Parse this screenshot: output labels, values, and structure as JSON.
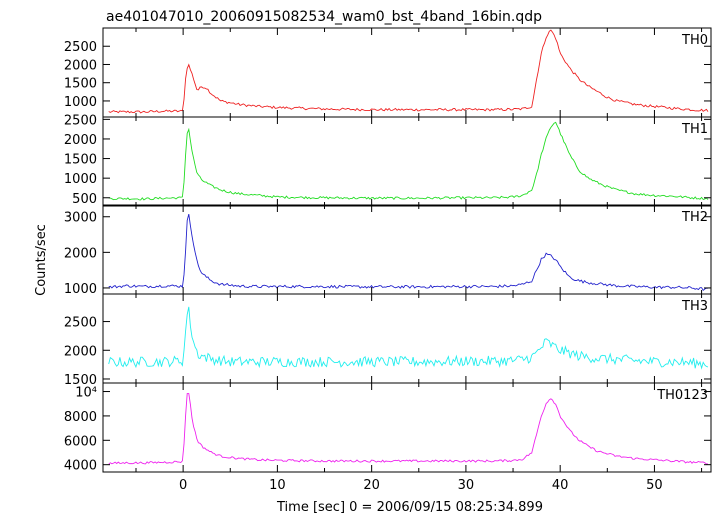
{
  "title": "ae401047010_20060915082534_wam0_bst_4band_16bin.qdp",
  "ylabel": "Counts/sec",
  "xlabel": "Time [sec] 0 = 2006/09/15 08:25:34.899",
  "chart_data": [
    {
      "type": "line",
      "name": "TH0",
      "color": "#ee2222",
      "xlim": [
        -8.5,
        56
      ],
      "ylim": [
        560,
        3000
      ],
      "yticks": [
        1000,
        1500,
        2000,
        2500
      ],
      "ytick_labels": [
        "1000",
        "1500",
        "2000",
        "2500"
      ],
      "x": [
        -8,
        -6,
        -4,
        -2,
        0,
        0.2,
        0.5,
        1,
        1.5,
        2,
        2.5,
        3,
        4,
        5,
        6,
        8,
        10,
        15,
        20,
        25,
        30,
        33,
        35,
        36,
        37,
        37.5,
        38,
        38.5,
        39,
        39.5,
        40,
        41,
        42,
        43,
        44,
        45,
        46,
        48,
        50,
        52,
        54,
        55.5
      ],
      "y": [
        700,
        700,
        700,
        720,
        720,
        1500,
        2050,
        1700,
        1280,
        1400,
        1350,
        1200,
        1000,
        950,
        900,
        850,
        820,
        780,
        760,
        760,
        760,
        760,
        770,
        780,
        850,
        1600,
        2300,
        2750,
        2950,
        2750,
        2300,
        1900,
        1600,
        1400,
        1250,
        1100,
        1000,
        900,
        850,
        800,
        760,
        740
      ],
      "jitter": 35
    },
    {
      "type": "line",
      "name": "TH1",
      "color": "#22dd22",
      "xlim": [
        -8.5,
        56
      ],
      "ylim": [
        290,
        2560
      ],
      "yticks": [
        500,
        1000,
        1500,
        2000,
        2500
      ],
      "ytick_labels": [
        "500",
        "1000",
        "1500",
        "2000",
        "2500"
      ],
      "x": [
        -8,
        -6,
        -4,
        -2,
        0,
        0.2,
        0.5,
        1,
        1.5,
        2,
        3,
        4,
        5,
        6,
        8,
        10,
        15,
        20,
        25,
        30,
        33,
        35,
        36,
        37,
        37.5,
        38,
        38.5,
        39,
        39.5,
        40,
        41,
        42,
        43,
        44,
        45,
        46,
        48,
        50,
        52,
        54,
        55.5
      ],
      "y": [
        480,
        480,
        470,
        490,
        500,
        1400,
        2400,
        1600,
        1100,
        950,
        800,
        700,
        640,
        600,
        560,
        520,
        500,
        490,
        490,
        500,
        500,
        520,
        560,
        700,
        1100,
        1600,
        2000,
        2300,
        2450,
        2150,
        1600,
        1200,
        1000,
        880,
        780,
        700,
        600,
        560,
        540,
        500,
        480
      ],
      "jitter": 30
    },
    {
      "type": "line",
      "name": "TH2",
      "color": "#2222cc",
      "xlim": [
        -8.5,
        56
      ],
      "ylim": [
        830,
        3330
      ],
      "yticks": [
        1000,
        2000,
        3000
      ],
      "ytick_labels": [
        "1000",
        "2000",
        "3000"
      ],
      "x": [
        -8,
        -6,
        -4,
        -2,
        0,
        0.2,
        0.5,
        1,
        1.5,
        2,
        3,
        4,
        5,
        6,
        8,
        10,
        15,
        20,
        25,
        30,
        33,
        35,
        36,
        37,
        37.5,
        38,
        38.5,
        39,
        39.5,
        40,
        41,
        42,
        43,
        44,
        46,
        48,
        50,
        52,
        54,
        55.5
      ],
      "y": [
        1020,
        1060,
        1040,
        1060,
        1050,
        1800,
        3200,
        2400,
        1700,
        1400,
        1200,
        1100,
        1080,
        1050,
        1040,
        1040,
        1040,
        1030,
        1030,
        1040,
        1040,
        1060,
        1100,
        1200,
        1500,
        1800,
        1950,
        1900,
        1800,
        1600,
        1300,
        1200,
        1150,
        1120,
        1060,
        1040,
        1020,
        1020,
        1000,
        960
      ],
      "jitter": 40
    },
    {
      "type": "line",
      "name": "TH3",
      "color": "#22eeee",
      "xlim": [
        -8.5,
        56
      ],
      "ylim": [
        1430,
        2980
      ],
      "yticks": [
        1500,
        2000,
        2500
      ],
      "ytick_labels": [
        "1500",
        "2000",
        "2500"
      ],
      "x": [
        -8,
        -6,
        -4,
        -2,
        0,
        0.2,
        0.5,
        1,
        1.5,
        2,
        3,
        4,
        5,
        6,
        8,
        10,
        15,
        20,
        25,
        30,
        33,
        35,
        36,
        37,
        37.5,
        38,
        38.5,
        39,
        39.5,
        40,
        41,
        42,
        43,
        44,
        46,
        48,
        50,
        52,
        54,
        55.5
      ],
      "y": [
        1800,
        1790,
        1800,
        1800,
        1820,
        2200,
        2800,
        2200,
        1950,
        1900,
        1850,
        1820,
        1800,
        1800,
        1800,
        1800,
        1800,
        1800,
        1800,
        1810,
        1810,
        1820,
        1840,
        1880,
        1950,
        2050,
        2150,
        2100,
        2050,
        2000,
        1950,
        1900,
        1880,
        1860,
        1840,
        1820,
        1800,
        1800,
        1780,
        1760
      ],
      "jitter": 90
    },
    {
      "type": "line",
      "name": "TH0123",
      "color": "#ee22ee",
      "xlim": [
        -8.5,
        56
      ],
      "ylim": [
        3400,
        10700
      ],
      "yticks": [
        4000,
        6000,
        8000,
        10000
      ],
      "ytick_labels": [
        "4000",
        "6000",
        "8000",
        "10⁴"
      ],
      "x": [
        -8,
        -6,
        -4,
        -2,
        0,
        0.2,
        0.5,
        1,
        1.5,
        2,
        3,
        4,
        5,
        6,
        8,
        10,
        15,
        20,
        25,
        30,
        33,
        35,
        36,
        37,
        37.5,
        38,
        38.5,
        39,
        39.5,
        40,
        41,
        42,
        43,
        44,
        45,
        46,
        48,
        50,
        52,
        54,
        55.5
      ],
      "y": [
        4100,
        4150,
        4150,
        4200,
        4250,
        7500,
        10500,
        7500,
        6000,
        5500,
        5000,
        4700,
        4600,
        4500,
        4400,
        4350,
        4300,
        4300,
        4300,
        4300,
        4300,
        4350,
        4450,
        5000,
        6500,
        8000,
        9000,
        9500,
        9000,
        8000,
        6800,
        6000,
        5500,
        5100,
        4900,
        4700,
        4500,
        4400,
        4300,
        4200,
        4150
      ],
      "jitter": 90
    }
  ],
  "xticks": [
    0,
    10,
    20,
    30,
    40,
    50
  ],
  "xtick_labels": [
    "0",
    "10",
    "20",
    "30",
    "40",
    "50"
  ]
}
